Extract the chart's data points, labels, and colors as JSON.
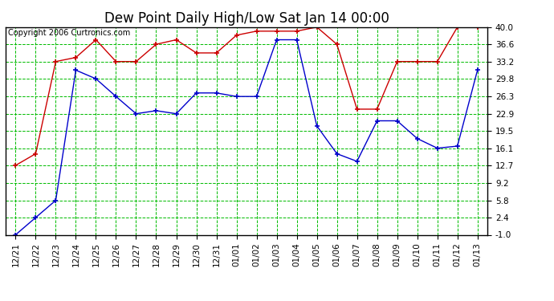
{
  "title": "Dew Point Daily High/Low Sat Jan 14 00:00",
  "copyright": "Copyright 2006 Curtronics.com",
  "labels": [
    "12/21",
    "12/22",
    "12/23",
    "12/24",
    "12/25",
    "12/26",
    "12/27",
    "12/28",
    "12/29",
    "12/30",
    "12/31",
    "01/01",
    "01/02",
    "01/03",
    "01/04",
    "01/05",
    "01/06",
    "01/07",
    "01/08",
    "01/09",
    "01/10",
    "01/11",
    "01/12",
    "01/13"
  ],
  "high_values": [
    12.7,
    15.0,
    33.2,
    34.0,
    37.5,
    33.2,
    33.2,
    36.6,
    37.5,
    34.9,
    34.9,
    38.4,
    39.2,
    39.2,
    39.2,
    40.0,
    36.6,
    23.8,
    23.8,
    33.2,
    33.2,
    33.2,
    40.0,
    40.0
  ],
  "low_values": [
    -1.0,
    2.4,
    5.8,
    31.5,
    29.8,
    26.3,
    22.9,
    23.5,
    22.9,
    27.0,
    27.0,
    26.3,
    26.3,
    37.5,
    37.5,
    20.5,
    15.0,
    13.5,
    21.5,
    21.5,
    18.0,
    16.1,
    16.5,
    31.5
  ],
  "yticks": [
    -1.0,
    2.4,
    5.8,
    9.2,
    12.7,
    16.1,
    19.5,
    22.9,
    26.3,
    29.8,
    33.2,
    36.6,
    40.0
  ],
  "ylim": [
    -1.0,
    40.0
  ],
  "bg_color": "#ffffff",
  "plot_bg_color": "#ffffff",
  "grid_color": "#00bb00",
  "high_color": "#cc0000",
  "low_color": "#0000cc",
  "border_color": "#000000",
  "title_fontsize": 12,
  "tick_fontsize": 7.5,
  "copyright_fontsize": 7
}
